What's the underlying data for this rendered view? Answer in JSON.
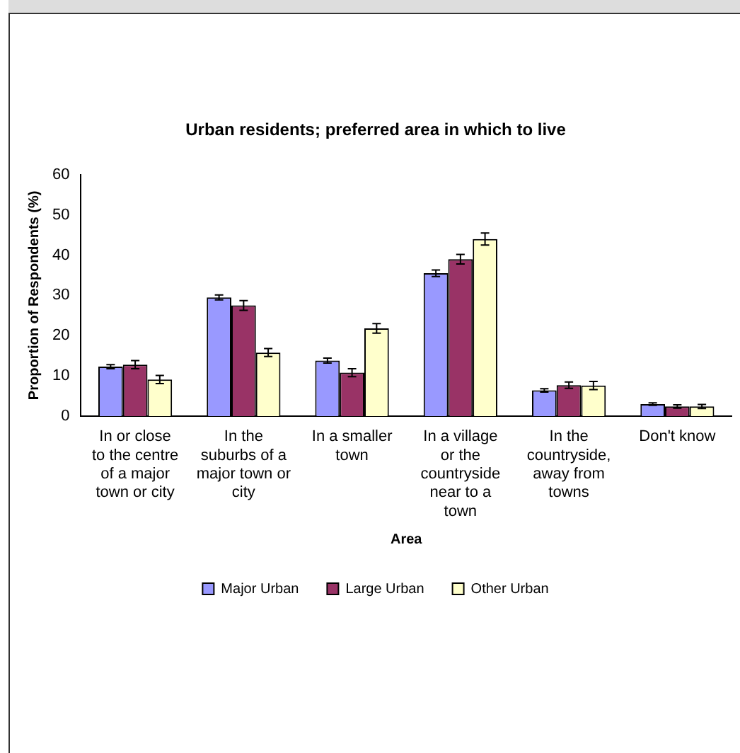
{
  "chart_data": {
    "type": "bar",
    "title": "Urban residents; preferred area in which to live",
    "xlabel": "Area",
    "ylabel": "Proportion of Respondents (%)",
    "categories": [
      "In or close to the centre of a major town or city",
      "In the suburbs of a major town or city",
      "In a smaller town",
      "In a village or the countryside near to a town",
      "In the countryside, away from towns",
      "Don't know"
    ],
    "series": [
      {
        "name": "Major Urban",
        "color": "#9999ff",
        "values": [
          12.3,
          29.5,
          13.8,
          35.5,
          6.4,
          3.0
        ],
        "errors": [
          0.5,
          0.6,
          0.6,
          0.8,
          0.4,
          0.3
        ]
      },
      {
        "name": "Large Urban",
        "color": "#993366",
        "values": [
          12.8,
          27.5,
          10.8,
          39,
          7.7,
          2.4
        ],
        "errors": [
          1,
          1.2,
          1,
          1.2,
          0.8,
          0.4
        ]
      },
      {
        "name": "Other Urban",
        "color": "#ffffcc",
        "values": [
          9.1,
          15.8,
          21.8,
          44,
          7.6,
          2.4
        ],
        "errors": [
          1,
          1,
          1.2,
          1.5,
          1,
          0.5
        ]
      }
    ],
    "ylim": [
      0,
      60
    ],
    "yticks": [
      0,
      10,
      20,
      30,
      40,
      50,
      60
    ],
    "grid": false,
    "legend": "bottom"
  }
}
